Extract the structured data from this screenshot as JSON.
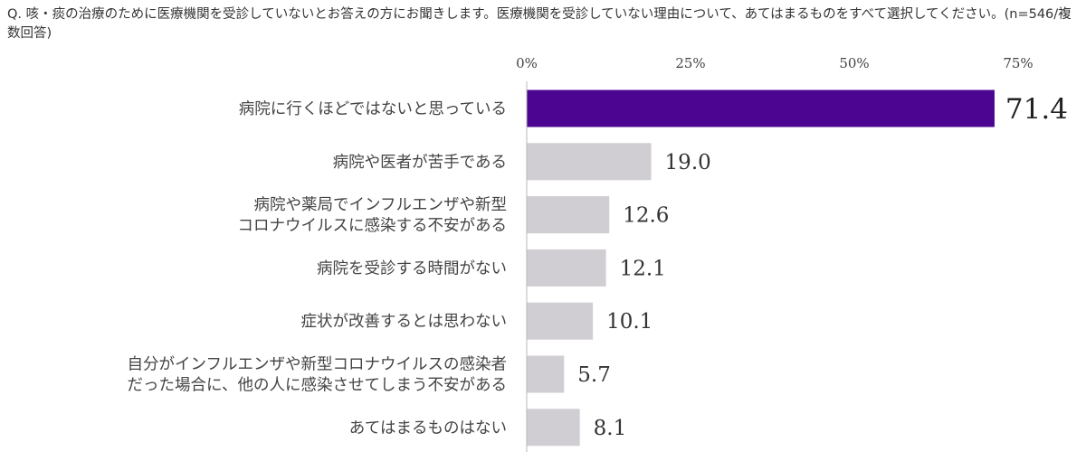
{
  "question": "Q. 咳・痰の治療のために医療機関を受診していないとお答えの方にお聞きします。医療機関を受診していない理由について、あてはまるものをすべて選択してください。(n=546/複数回答)",
  "chart_data": {
    "type": "bar",
    "orientation": "horizontal",
    "categories": [
      [
        "病院に行くほどではないと思っている"
      ],
      [
        "病院や医者が苦手である"
      ],
      [
        "病院や薬局でインフルエンザや新型",
        "コロナウイルスに感染する不安がある"
      ],
      [
        "病院を受診する時間がない"
      ],
      [
        "症状が改善するとは思わない"
      ],
      [
        "自分がインフルエンザや新型コロナウイルスの感染者",
        "だった場合に、他の人に感染させてしまう不安がある"
      ],
      [
        "あてはまるものはない"
      ]
    ],
    "values": [
      71.4,
      19.0,
      12.6,
      12.1,
      10.1,
      5.7,
      8.1
    ],
    "value_labels": [
      "71.4",
      "19.0",
      "12.6",
      "12.1",
      "10.1",
      "5.7",
      "8.1"
    ],
    "ticks": [
      "0%",
      "25%",
      "50%",
      "75%"
    ],
    "tick_values": [
      0,
      25,
      50,
      75
    ],
    "xlim": [
      0,
      75
    ],
    "grid": false,
    "colors": {
      "highlight": "#4b0590",
      "default": "#d0ced3",
      "axis": "#b8b8b8"
    },
    "highlight_index": 0
  }
}
